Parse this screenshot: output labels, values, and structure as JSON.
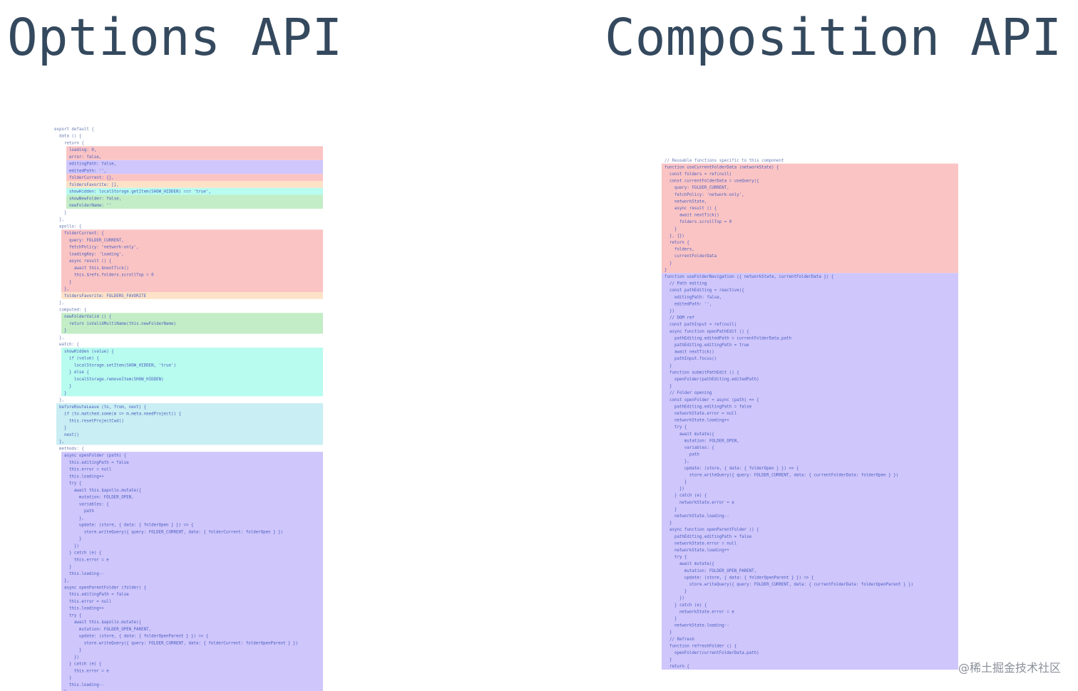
{
  "titles": {
    "left": "Options API",
    "right": "Composition API"
  },
  "watermark": "@稀土掘金技术社区",
  "left": {
    "blocks": [
      {
        "lines": [
          "export default {",
          "  data () {",
          "    return {"
        ]
      },
      {
        "color": "#fbc4c4",
        "lines": [
          "      loading: 0,",
          "      error: false,"
        ]
      },
      {
        "color": "#cfc6fb",
        "lines": [
          "      editingPath: false,",
          "      editedPath: '',"
        ]
      },
      {
        "color": "#fbc4c4",
        "lines": [
          "      folderCurrent: {},"
        ]
      },
      {
        "color": "#fde2c8",
        "lines": [
          "      foldersFavorite: [],"
        ]
      },
      {
        "color": "#b8fbef",
        "lines": [
          "      showHidden: localStorage.getItem(SHOW_HIDDEN) === 'true',"
        ]
      },
      {
        "color": "#c3edc6",
        "lines": [
          "      showNewFolder: false,",
          "      newFolderName: ''"
        ]
      },
      {
        "lines": [
          "    }",
          "  },",
          "  apollo: {"
        ]
      },
      {
        "color": "#fbc4c4",
        "lines": [
          "    folderCurrent: {",
          "      query: FOLDER_CURRENT,",
          "      fetchPolicy: 'network-only',",
          "      loadingKey: 'loading',",
          "      async result () {",
          "        await this.$nextTick()",
          "        this.$refs.folders.scrollTop = 0",
          "      }",
          "    },"
        ]
      },
      {
        "color": "#fde2c8",
        "lines": [
          "    foldersFavorite: FOLDERS_FAVORITE"
        ]
      },
      {
        "lines": [
          "  },",
          "  computed: {"
        ]
      },
      {
        "color": "#c3edc6",
        "lines": [
          "    newFolderValid () {",
          "      return isValidMultiName(this.newFolderName)",
          "    }"
        ]
      },
      {
        "lines": [
          "  },",
          "  watch: {"
        ]
      },
      {
        "color": "#b8fbef",
        "lines": [
          "    showHidden (value) {",
          "      if (value) {",
          "        localStorage.setItem(SHOW_HIDDEN, 'true')",
          "      } else {",
          "        localStorage.removeItem(SHOW_HIDDEN)",
          "      }",
          "    }"
        ]
      },
      {
        "lines": [
          "  },"
        ]
      },
      {
        "color": "#c9eef3",
        "lines": [
          "  beforeRouteLeave (to, from, next) {",
          "    if (to.matched.some(m => m.meta.needProject)) {",
          "      this.resetProjectCwd()",
          "    }",
          "    next()",
          "  },"
        ]
      },
      {
        "lines": [
          "  methods: {"
        ]
      },
      {
        "color": "#cfc6fb",
        "lines": [
          "    async openFolder (path) {",
          "      this.editingPath = false",
          "      this.error = null",
          "      this.loading++",
          "      try {",
          "        await this.$apollo.mutate({",
          "          mutation: FOLDER_OPEN,",
          "          variables: {",
          "            path",
          "          },",
          "          update: (store, { data: { folderOpen } }) => {",
          "            store.writeQuery({ query: FOLDER_CURRENT, data: { folderCurrent: folderOpen } })",
          "          }",
          "        })",
          "      } catch (e) {",
          "        this.error = e",
          "      }",
          "      this.loading--",
          "    },",
          "    async openParentFolder (folder) {",
          "      this.editingPath = false",
          "      this.error = null",
          "      this.loading++",
          "      try {",
          "        await this.$apollo.mutate({",
          "          mutation: FOLDER_OPEN_PARENT,",
          "          update: (store, { data: { folderOpenParent } }) => {",
          "            store.writeQuery({ query: FOLDER_CURRENT, data: { folderCurrent: folderOpenParent } })",
          "          }",
          "        })",
          "      } catch (e) {",
          "        this.error = e",
          "      }",
          "      this.loading--",
          "    }"
        ]
      },
      {
        "lines": [
          "  }"
        ]
      }
    ]
  },
  "right": {
    "blocks": [
      {
        "lines": [
          "// Reusable functions specific to this component"
        ]
      },
      {
        "color": "#fbc4c4",
        "lines": [
          "function useCurrentFolderData (networkState) {",
          "  const folders = ref(null)",
          "  const currentFolderData = useQuery({",
          "    query: FOLDER_CURRENT,",
          "    fetchPolicy: 'network-only',",
          "    networkState,",
          "    async result () {",
          "      await nextTick()",
          "      folders.scrollTop = 0",
          "    }",
          "  }, {})",
          "  return {",
          "    folders,",
          "    currentFolderData",
          "  }",
          "}"
        ]
      },
      {
        "color": "#cfc6fb",
        "lines": [
          "function useFolderNavigation ({ networkState, currentFolderData }) {",
          "  // Path editing",
          "  const pathEditing = reactive({",
          "    editingPath: false,",
          "    editedPath: '',",
          "  })",
          "  // DOM ref",
          "  const pathInput = ref(null)",
          "  async function openPathEdit () {",
          "    pathEditing.editedPath = currentFolderData.path",
          "    pathEditing.editingPath = true",
          "    await nextTick()",
          "    pathInput.focus()",
          "  }",
          "  function submitPathEdit () {",
          "    openFolder(pathEditing.editedPath)",
          "  }",
          "  // Folder opening",
          "  const openFolder = async (path) => {",
          "    pathEditing.editingPath = false",
          "    networkState.error = null",
          "    networkState.loading++",
          "    try {",
          "      await mutate({",
          "        mutation: FOLDER_OPEN,",
          "        variables: {",
          "          path",
          "        },",
          "        update: (store, { data: { folderOpen } }) => {",
          "          store.writeQuery({ query: FOLDER_CURRENT, data: { currentFolderData: folderOpen } })",
          "        }",
          "      })",
          "    } catch (e) {",
          "      networkState.error = e",
          "    }",
          "    networkState.loading--",
          "  }",
          "  async function openParentFolder () {",
          "    pathEditing.editingPath = false",
          "    networkState.error = null",
          "    networkState.loading++",
          "    try {",
          "      await mutate({",
          "        mutation: FOLDER_OPEN_PARENT,",
          "        update: (store, { data: { folderOpenParent } }) => {",
          "          store.writeQuery({ query: FOLDER_CURRENT, data: { currentFolderData: folderOpenParent } })",
          "        }",
          "      })",
          "    } catch (e) {",
          "      networkState.error = e",
          "    }",
          "    networkState.loading--",
          "  }",
          "  // Refresh",
          "  function refreshFolder () {",
          "    openFolder(currentFolderData.path)",
          "  }",
          "  return {"
        ]
      }
    ]
  }
}
